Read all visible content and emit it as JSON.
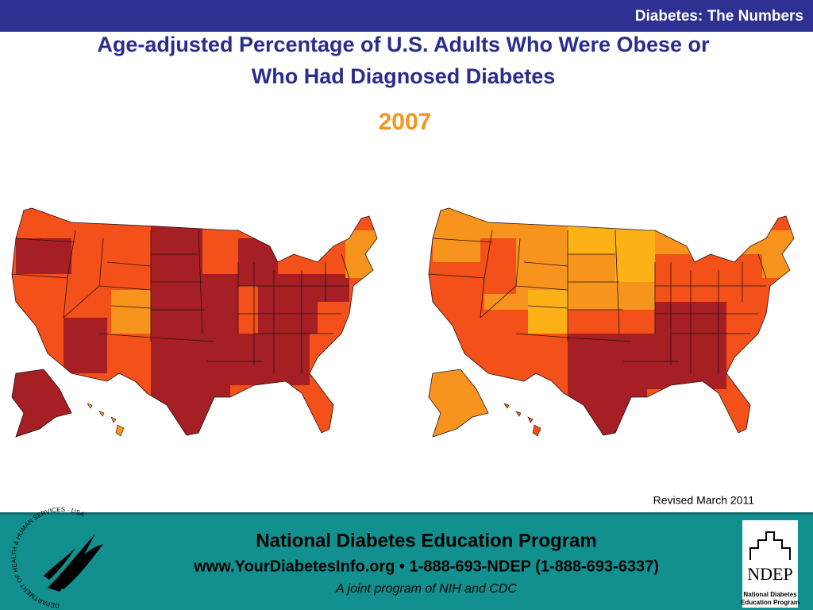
{
  "header": {
    "section": "Diabetes: The Numbers"
  },
  "title": {
    "line1": "Age-adjusted Percentage of U.S. Adults Who Were Obese or",
    "line2": "Who Had Diagnosed Diabetes",
    "year": "2007"
  },
  "note": "Revised March 2011",
  "footer": {
    "program": "National Diabetes Education Program",
    "contact": "www.YourDiabetesInfo.org • 1-888-693-NDEP (1-888-693-6337)",
    "tagline": "A joint program of NIH and CDC",
    "hhs_seal": "DEPARTMENT OF HEALTH & HUMAN SERVICES · USA",
    "ndep_logo": "NDEP",
    "ndep_line1": "National Diabetes",
    "ndep_line2": "Education Program"
  }
}
